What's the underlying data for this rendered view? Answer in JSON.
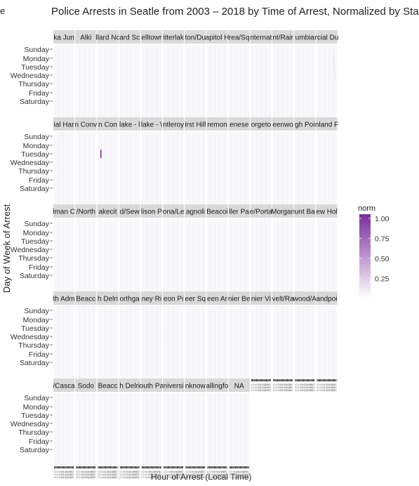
{
  "figure_fragment": "e",
  "chart_data": {
    "type": "heatmap",
    "title": "Police Arrests in Seatle from 2003 – 2018 by Time of Arrest, Normalized by Sta",
    "xlabel": "Hour of Arrest (Local Time)",
    "ylabel": "Day of Week of Arrest",
    "days": [
      "Sunday",
      "Monday",
      "Tuesday",
      "Wednesday",
      "Thursday",
      "Friday",
      "Saturday"
    ],
    "hours": [
      0,
      1,
      2,
      3,
      4,
      5,
      6,
      7,
      8,
      9,
      10,
      11,
      12,
      13,
      14,
      15,
      16,
      17,
      18,
      19,
      20,
      21,
      22,
      23
    ],
    "legend": {
      "title": "norm",
      "breaks": [
        "1.00",
        "0.75",
        "0.50",
        "0.25"
      ],
      "low": "#ffffff",
      "high": "#7b2d9e"
    },
    "panels": [
      "ka Jun",
      "Alki",
      "llard Nc",
      "ard Sc",
      "elltowr",
      "itterlak",
      "ton/Du",
      "apitol H",
      "rea/Sq",
      "nternat",
      "nt/Rair",
      "umbia",
      "rcial Du",
      "ial Har",
      "n Conv",
      "n Con",
      "lake - l",
      "lake - \\",
      "ntleroy",
      "irst Hill",
      "remon",
      "enese",
      "orgeto",
      "eenwo",
      "gh Poi",
      "nland F",
      "lman C",
      "/North",
      "akecit",
      "d/Sew",
      "lison P",
      "ona/Le",
      "agnoli",
      "Beacoi",
      "ller Pa",
      "e/Porta",
      "Morgan",
      "unt Ba",
      "ew Hol",
      "th Adm",
      "Beacc",
      "h Delri",
      "orthga",
      "ney Ri",
      "eon Pi",
      "eer Sq",
      "een Ar",
      "nier Be",
      "nier Vi",
      "velt/Ra",
      "wood/A",
      "andpoi",
      "/Casca",
      "Sodo",
      "Beacc",
      "h Delri",
      "outh Pa",
      "niversi",
      "nknow",
      "allingfo",
      "NA"
    ],
    "highlights": [
      {
        "panel": "n Con",
        "day": "Tuesday",
        "hour": 3,
        "value": 1.0
      },
      {
        "panel": "rcial Du",
        "day": "Monday",
        "hour": 20,
        "value": 0.12
      },
      {
        "panel": "rcial Du",
        "day": "Tuesday",
        "hour": 20,
        "value": 0.1
      },
      {
        "panel": "rcial Du",
        "day": "Wednesday",
        "hour": 21,
        "value": 0.1
      },
      {
        "panel": "ial Har",
        "day": "Sunday",
        "hour": 10,
        "value": 0.08
      },
      {
        "panel": "ial Har",
        "day": "Thursday",
        "hour": 8,
        "value": 0.06
      },
      {
        "panel": "eon Pi",
        "day": "Wednesday",
        "hour": 2,
        "value": 0.06
      }
    ]
  }
}
